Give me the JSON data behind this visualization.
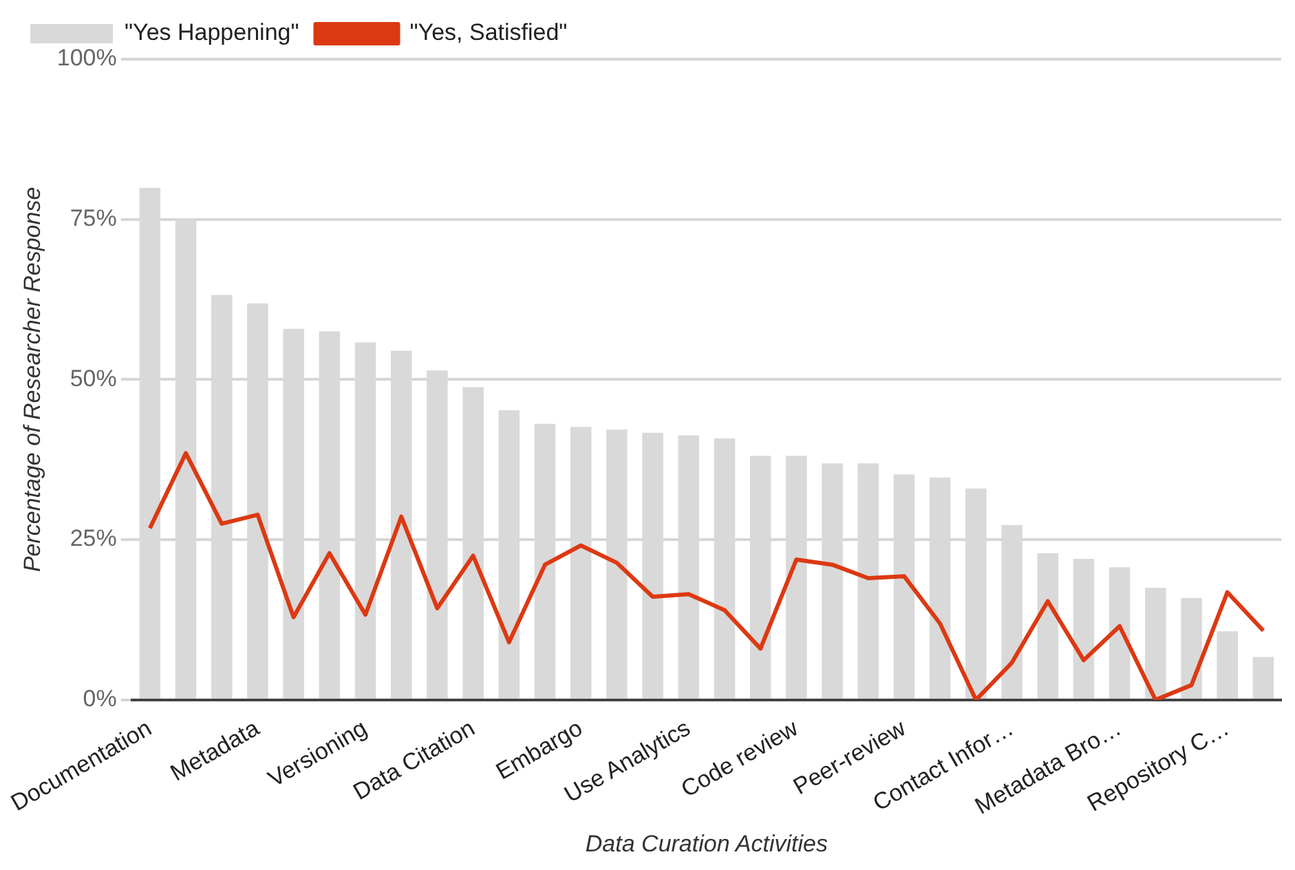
{
  "chart_data": {
    "type": "bar",
    "xlabel": "Data Curation Activities",
    "ylabel": "Percentage of Researcher Response",
    "categories": [
      "Documentation",
      null,
      null,
      "Metadata",
      null,
      null,
      "Versioning",
      null,
      null,
      "Data Citation",
      null,
      null,
      "Embargo",
      null,
      null,
      "Use Analytics",
      null,
      null,
      "Code review",
      null,
      null,
      "Peer-review",
      null,
      null,
      "Contact Infor…",
      null,
      null,
      "Metadata Bro…",
      null,
      null,
      "Repository C…",
      null
    ],
    "series": [
      {
        "name": "\"Yes Happening\"",
        "color": "#d9d9d9",
        "values": [
          79.9,
          75.1,
          63.2,
          61.9,
          57.9,
          57.5,
          55.8,
          54.5,
          51.4,
          48.8,
          45.2,
          43.1,
          42.6,
          42.2,
          41.7,
          41.3,
          40.8,
          38.1,
          38.1,
          36.9,
          36.9,
          35.2,
          34.7,
          33.0,
          27.3,
          22.9,
          22.0,
          20.7,
          17.5,
          15.9,
          10.7,
          6.7
        ]
      },
      {
        "name": "\"Yes, Satisfied\"",
        "type": "line",
        "color": "#dc3912",
        "values": [
          26.8,
          38.5,
          27.5,
          28.9,
          12.9,
          22.9,
          13.3,
          28.6,
          14.3,
          22.5,
          9.0,
          21.1,
          24.1,
          21.4,
          16.1,
          16.5,
          14.0,
          8.0,
          21.9,
          21.1,
          19.0,
          19.3,
          11.9,
          0,
          5.8,
          15.4,
          6.2,
          11.5,
          0,
          2.3,
          16.8,
          10.8
        ]
      }
    ],
    "ylim": [
      0,
      100
    ],
    "yticks": [
      {
        "value": 0,
        "label": "0%"
      },
      {
        "value": 25,
        "label": "25%"
      },
      {
        "value": 50,
        "label": "50%"
      },
      {
        "value": 75,
        "label": "75%"
      },
      {
        "value": 100,
        "label": "100%"
      }
    ],
    "grid": "y",
    "legend": "top left",
    "marker": "none",
    "line_style": "solid"
  }
}
